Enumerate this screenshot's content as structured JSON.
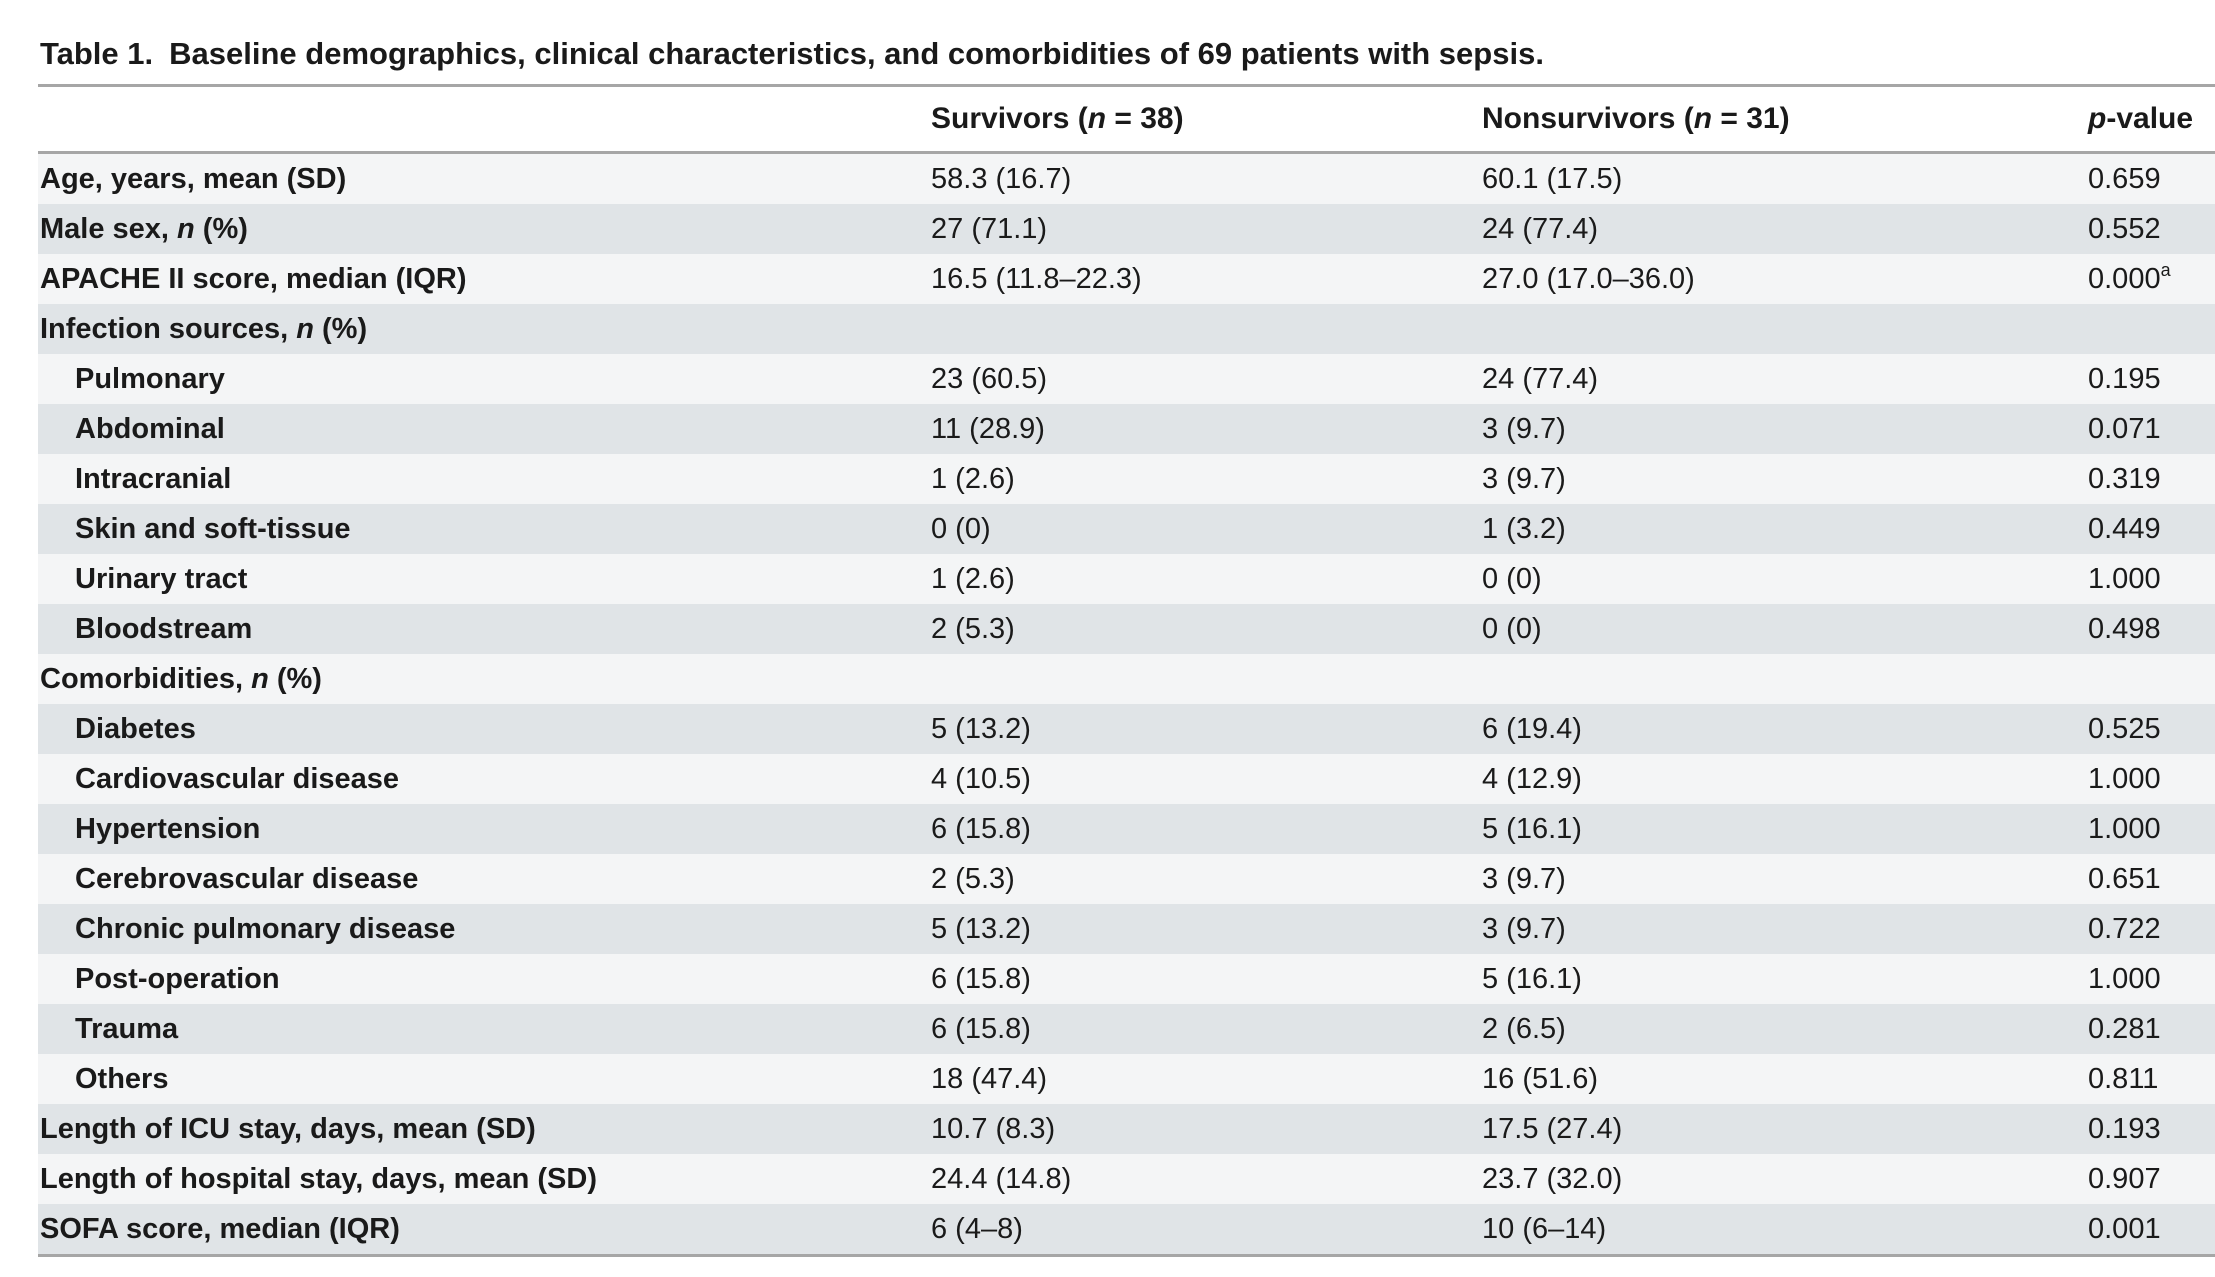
{
  "caption": {
    "label": "Table 1.",
    "text": "Baseline demographics, clinical characteristics, and comorbidities of 69 patients with sepsis."
  },
  "header": {
    "col1_prefix": "Survivors (",
    "col1_n": "n",
    "col1_suffix": " = 38)",
    "col2_prefix": "Nonsurvivors (",
    "col2_n": "n",
    "col2_suffix": " = 31)",
    "col3_p": "p",
    "col3_suffix": "-value"
  },
  "rows": [
    {
      "label": "Age, years, mean (SD)",
      "label_italic": "",
      "label_tail": "",
      "indent": false,
      "survivors": "58.3 (16.7)",
      "nonsurvivors": "60.1 (17.5)",
      "p": "0.659",
      "sup": ""
    },
    {
      "label": "Male sex, ",
      "label_italic": "n",
      "label_tail": " (%)",
      "indent": false,
      "survivors": "27 (71.1)",
      "nonsurvivors": "24 (77.4)",
      "p": "0.552",
      "sup": ""
    },
    {
      "label": "APACHE II score, median (IQR)",
      "label_italic": "",
      "label_tail": "",
      "indent": false,
      "survivors": "16.5 (11.8–22.3)",
      "nonsurvivors": "27.0 (17.0–36.0)",
      "p": "0.000",
      "sup": "a"
    },
    {
      "label": "Infection sources, ",
      "label_italic": "n",
      "label_tail": " (%)",
      "indent": false,
      "survivors": "",
      "nonsurvivors": "",
      "p": "",
      "sup": ""
    },
    {
      "label": "Pulmonary",
      "label_italic": "",
      "label_tail": "",
      "indent": true,
      "survivors": "23 (60.5)",
      "nonsurvivors": "24 (77.4)",
      "p": "0.195",
      "sup": ""
    },
    {
      "label": "Abdominal",
      "label_italic": "",
      "label_tail": "",
      "indent": true,
      "survivors": "11 (28.9)",
      "nonsurvivors": "3 (9.7)",
      "p": "0.071",
      "sup": ""
    },
    {
      "label": "Intracranial",
      "label_italic": "",
      "label_tail": "",
      "indent": true,
      "survivors": "1 (2.6)",
      "nonsurvivors": "3 (9.7)",
      "p": "0.319",
      "sup": ""
    },
    {
      "label": "Skin and soft-tissue",
      "label_italic": "",
      "label_tail": "",
      "indent": true,
      "survivors": "0 (0)",
      "nonsurvivors": "1 (3.2)",
      "p": "0.449",
      "sup": ""
    },
    {
      "label": "Urinary tract",
      "label_italic": "",
      "label_tail": "",
      "indent": true,
      "survivors": "1 (2.6)",
      "nonsurvivors": "0 (0)",
      "p": "1.000",
      "sup": ""
    },
    {
      "label": "Bloodstream",
      "label_italic": "",
      "label_tail": "",
      "indent": true,
      "survivors": "2 (5.3)",
      "nonsurvivors": "0 (0)",
      "p": "0.498",
      "sup": ""
    },
    {
      "label": "Comorbidities, ",
      "label_italic": "n",
      "label_tail": " (%)",
      "indent": false,
      "survivors": "",
      "nonsurvivors": "",
      "p": "",
      "sup": ""
    },
    {
      "label": "Diabetes",
      "label_italic": "",
      "label_tail": "",
      "indent": true,
      "survivors": "5 (13.2)",
      "nonsurvivors": "6 (19.4)",
      "p": "0.525",
      "sup": ""
    },
    {
      "label": "Cardiovascular disease",
      "label_italic": "",
      "label_tail": "",
      "indent": true,
      "survivors": "4 (10.5)",
      "nonsurvivors": "4 (12.9)",
      "p": "1.000",
      "sup": ""
    },
    {
      "label": "Hypertension",
      "label_italic": "",
      "label_tail": "",
      "indent": true,
      "survivors": "6 (15.8)",
      "nonsurvivors": "5 (16.1)",
      "p": "1.000",
      "sup": ""
    },
    {
      "label": "Cerebrovascular disease",
      "label_italic": "",
      "label_tail": "",
      "indent": true,
      "survivors": "2 (5.3)",
      "nonsurvivors": "3 (9.7)",
      "p": "0.651",
      "sup": ""
    },
    {
      "label": "Chronic pulmonary disease",
      "label_italic": "",
      "label_tail": "",
      "indent": true,
      "survivors": "5 (13.2)",
      "nonsurvivors": "3 (9.7)",
      "p": "0.722",
      "sup": ""
    },
    {
      "label": "Post-operation",
      "label_italic": "",
      "label_tail": "",
      "indent": true,
      "survivors": "6 (15.8)",
      "nonsurvivors": "5 (16.1)",
      "p": "1.000",
      "sup": ""
    },
    {
      "label": "Trauma",
      "label_italic": "",
      "label_tail": "",
      "indent": true,
      "survivors": "6 (15.8)",
      "nonsurvivors": "2 (6.5)",
      "p": "0.281",
      "sup": ""
    },
    {
      "label": "Others",
      "label_italic": "",
      "label_tail": "",
      "indent": true,
      "survivors": "18 (47.4)",
      "nonsurvivors": "16 (51.6)",
      "p": "0.811",
      "sup": ""
    },
    {
      "label": "Length of ICU stay, days, mean (SD)",
      "label_italic": "",
      "label_tail": "",
      "indent": false,
      "survivors": "10.7 (8.3)",
      "nonsurvivors": "17.5 (27.4)",
      "p": "0.193",
      "sup": ""
    },
    {
      "label": "Length of hospital stay, days, mean (SD)",
      "label_italic": "",
      "label_tail": "",
      "indent": false,
      "survivors": "24.4 (14.8)",
      "nonsurvivors": "23.7 (32.0)",
      "p": "0.907",
      "sup": ""
    },
    {
      "label": "SOFA score, median (IQR)",
      "label_italic": "",
      "label_tail": "",
      "indent": false,
      "survivors": "6 (4–8)",
      "nonsurvivors": "10 (6–14)",
      "p": "0.001",
      "sup": ""
    }
  ],
  "colors": {
    "shade_row": "#e0e4e7",
    "light_row": "#f4f5f6",
    "rule": "#a6a6a6"
  }
}
